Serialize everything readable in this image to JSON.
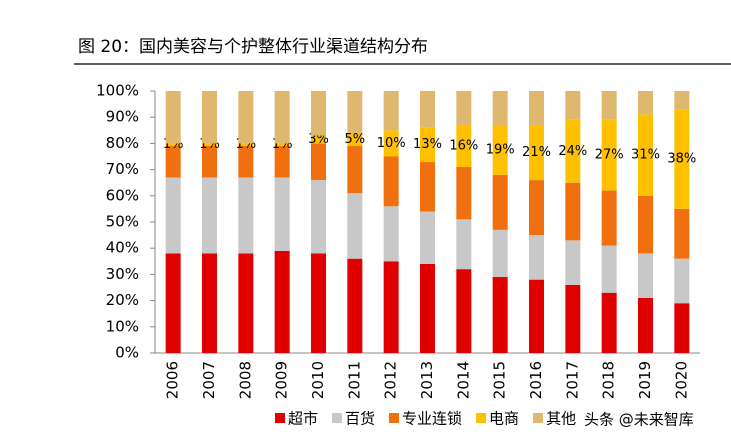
{
  "chart_data": {
    "type": "stacked_bar",
    "title": "图 20：国内美容与个护整体行业渠道结构分布",
    "categories": [
      "2006",
      "2007",
      "2008",
      "2009",
      "2010",
      "2011",
      "2012",
      "2013",
      "2014",
      "2015",
      "2016",
      "2017",
      "2018",
      "2019",
      "2020"
    ],
    "series": [
      {
        "name": "超市",
        "color": "#e00000",
        "values": [
          38,
          38,
          38,
          39,
          38,
          36,
          35,
          34,
          32,
          29,
          28,
          26,
          23,
          21,
          19
        ]
      },
      {
        "name": "百货",
        "color": "#c8c8c8",
        "values": [
          29,
          29,
          29,
          28,
          28,
          25,
          21,
          20,
          19,
          18,
          17,
          17,
          18,
          17,
          17
        ]
      },
      {
        "name": "专业连锁",
        "color": "#f07010",
        "values": [
          12,
          12,
          12,
          12,
          14,
          18,
          19,
          19,
          20,
          21,
          21,
          22,
          21,
          22,
          19
        ]
      },
      {
        "name": "电商",
        "color": "#ffc000",
        "values": [
          1,
          1,
          1,
          1,
          3,
          5,
          10,
          13,
          16,
          19,
          21,
          24,
          27,
          31,
          38
        ],
        "value_labels": [
          "1%",
          "1%",
          "1%",
          "1%",
          "3%",
          "5%",
          "10%",
          "13%",
          "16%",
          "19%",
          "21%",
          "24%",
          "27%",
          "31%",
          "38%"
        ]
      },
      {
        "name": "其他",
        "color": "#dfb870",
        "values": [
          20,
          20,
          20,
          20,
          17,
          16,
          15,
          14,
          13,
          13,
          13,
          11,
          11,
          9,
          7
        ]
      }
    ],
    "ylim": [
      0,
      100
    ],
    "yticks": [
      {
        "value": 0,
        "label": "0%"
      },
      {
        "value": 10,
        "label": "10%"
      },
      {
        "value": 20,
        "label": "20%"
      },
      {
        "value": 30,
        "label": "30%"
      },
      {
        "value": 40,
        "label": "40%"
      },
      {
        "value": 50,
        "label": "50%"
      },
      {
        "value": 60,
        "label": "60%"
      },
      {
        "value": 70,
        "label": "70%"
      },
      {
        "value": 80,
        "label": "80%"
      },
      {
        "value": 90,
        "label": "90%"
      },
      {
        "value": 100,
        "label": "100%"
      }
    ],
    "watermark": "头条 @未来智库"
  }
}
